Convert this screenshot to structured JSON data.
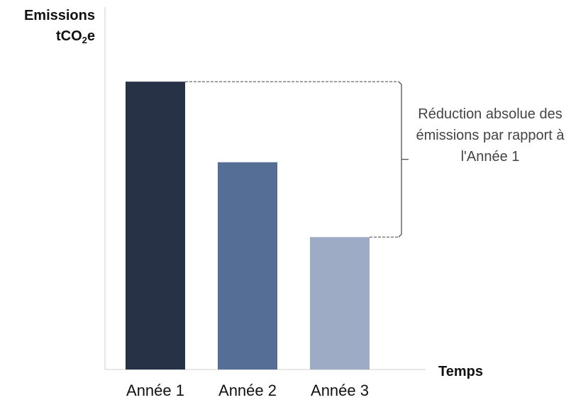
{
  "chart_data": {
    "type": "bar",
    "categories": [
      "Année 1",
      "Année 2",
      "Année 3"
    ],
    "values": [
      100,
      72,
      46
    ],
    "colors": [
      "#283246",
      "#546e95",
      "#9eabc5"
    ],
    "ylabel": {
      "line1": "Emissions",
      "line2_prefix": "tCO",
      "line2_sub": "2",
      "line2_suffix": "e"
    },
    "xlabel": "Temps",
    "ylim": [
      0,
      102
    ],
    "annotation": "Réduction absolue des émissions par rapport à l'Année 1",
    "grid": false
  }
}
